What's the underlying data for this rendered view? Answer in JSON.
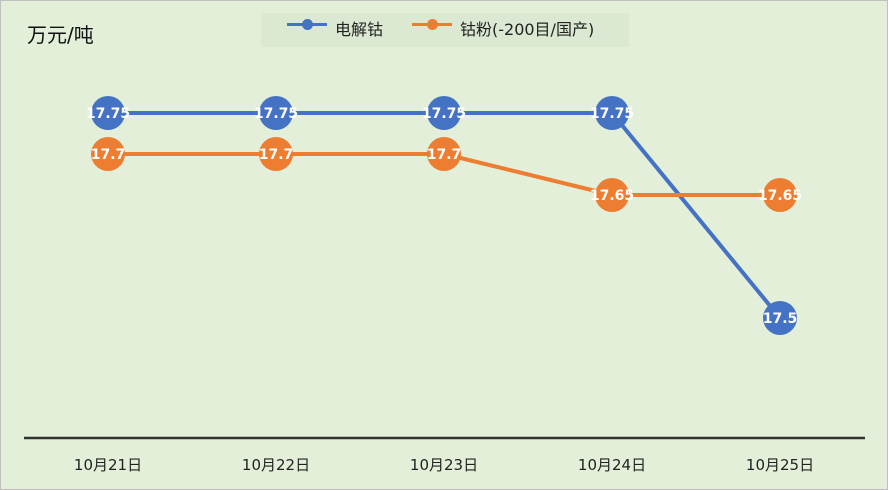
{
  "chart_data": {
    "type": "line",
    "unit_label": "万元/吨",
    "categories": [
      "10月21日",
      "10月22日",
      "10月23日",
      "10月24日",
      "10月25日"
    ],
    "series": [
      {
        "name": "电解钴",
        "color": "#4472c4",
        "values": [
          17.75,
          17.75,
          17.75,
          17.75,
          17.5
        ],
        "labels": [
          "17.75",
          "17.75",
          "17.75",
          "17.75",
          "17.5"
        ]
      },
      {
        "name": "钴粉(-200目/国产)",
        "color": "#ed7d31",
        "values": [
          17.7,
          17.7,
          17.7,
          17.65,
          17.65
        ],
        "labels": [
          "17.7",
          "17.7",
          "17.7",
          "17.65",
          "17.65"
        ]
      }
    ],
    "ylim": [
      17.35,
      17.85
    ],
    "grid": false,
    "legend_position": "top-center"
  }
}
